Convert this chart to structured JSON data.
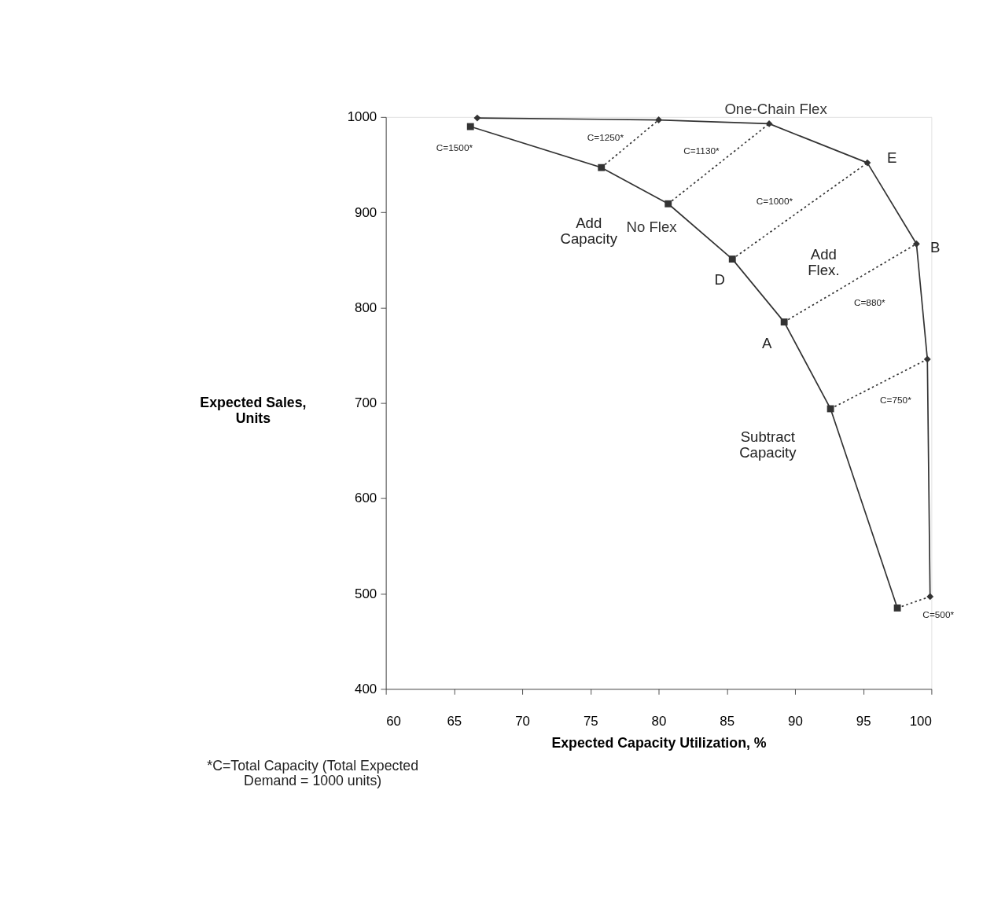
{
  "chart_data": {
    "type": "line",
    "xlabel": "Expected Capacity Utilization, %",
    "ylabel": "Expected Sales,\nUnits",
    "xlim": [
      60,
      100
    ],
    "ylim": [
      400,
      1000
    ],
    "xticks": [
      60,
      65,
      70,
      75,
      80,
      85,
      90,
      95,
      100
    ],
    "yticks": [
      400,
      500,
      600,
      700,
      800,
      900,
      1000
    ],
    "grid": false,
    "series": [
      {
        "name": "No Flex",
        "color": "#333333",
        "marker": "square",
        "line_style": "solid",
        "x": [
          66.2,
          75.8,
          80.7,
          85.4,
          89.2,
          92.6,
          97.5
        ],
        "values": [
          990,
          947,
          909,
          851,
          785,
          694,
          485
        ]
      },
      {
        "name": "One-Chain Flex",
        "color": "#333333",
        "marker": "diamond",
        "line_style": "solid",
        "x": [
          66.7,
          80,
          88.1,
          95.3,
          98.9,
          99.7,
          99.9
        ],
        "values": [
          999,
          997,
          993,
          952,
          867,
          746,
          497
        ]
      },
      {
        "color": "#333333",
        "marker": "none",
        "line_style": "dotted",
        "x": [
          75.8,
          80
        ],
        "values": [
          947,
          997
        ]
      },
      {
        "color": "#333333",
        "marker": "none",
        "line_style": "dotted",
        "x": [
          80.7,
          88.1
        ],
        "values": [
          909,
          993
        ]
      },
      {
        "color": "#333333",
        "marker": "none",
        "line_style": "dotted",
        "x": [
          85.4,
          95.3
        ],
        "values": [
          851,
          952
        ]
      },
      {
        "color": "#333333",
        "marker": "none",
        "line_style": "dotted",
        "x": [
          89.2,
          98.9
        ],
        "values": [
          785,
          867
        ]
      },
      {
        "color": "#333333",
        "marker": "none",
        "line_style": "dotted",
        "x": [
          92.6,
          99.7
        ],
        "values": [
          694,
          746
        ]
      },
      {
        "color": "#333333",
        "marker": "none",
        "line_style": "dotted",
        "x": [
          97.5,
          99.9
        ],
        "values": [
          485,
          497
        ]
      }
    ],
    "annotations": [
      {
        "text": "C=1500*",
        "x": 66.2,
        "y": 990
      },
      {
        "text": "C=1250*",
        "x": 77.9,
        "y": 972
      },
      {
        "text": "C=1130*",
        "x": 84.4,
        "y": 951
      },
      {
        "text": "C=1000*",
        "x": 90.35,
        "y": 901.5
      },
      {
        "text": "C=880*",
        "x": 94.05,
        "y": 826
      },
      {
        "text": "C=750*",
        "x": 96.15,
        "y": 720
      },
      {
        "text": "C=500*",
        "x": 98.7,
        "y": 491
      },
      {
        "text": "A",
        "x": 89.2,
        "y": 785
      },
      {
        "text": "B",
        "x": 98.9,
        "y": 867
      },
      {
        "text": "D",
        "x": 85.4,
        "y": 851
      },
      {
        "text": "E",
        "x": 95.3,
        "y": 952
      },
      "Add\nCapacity",
      "Add\nFlex.",
      "Subtract\nCapacity",
      "*C=Total Capacity (Total Expected\nDemand = 1000 units)"
    ]
  }
}
